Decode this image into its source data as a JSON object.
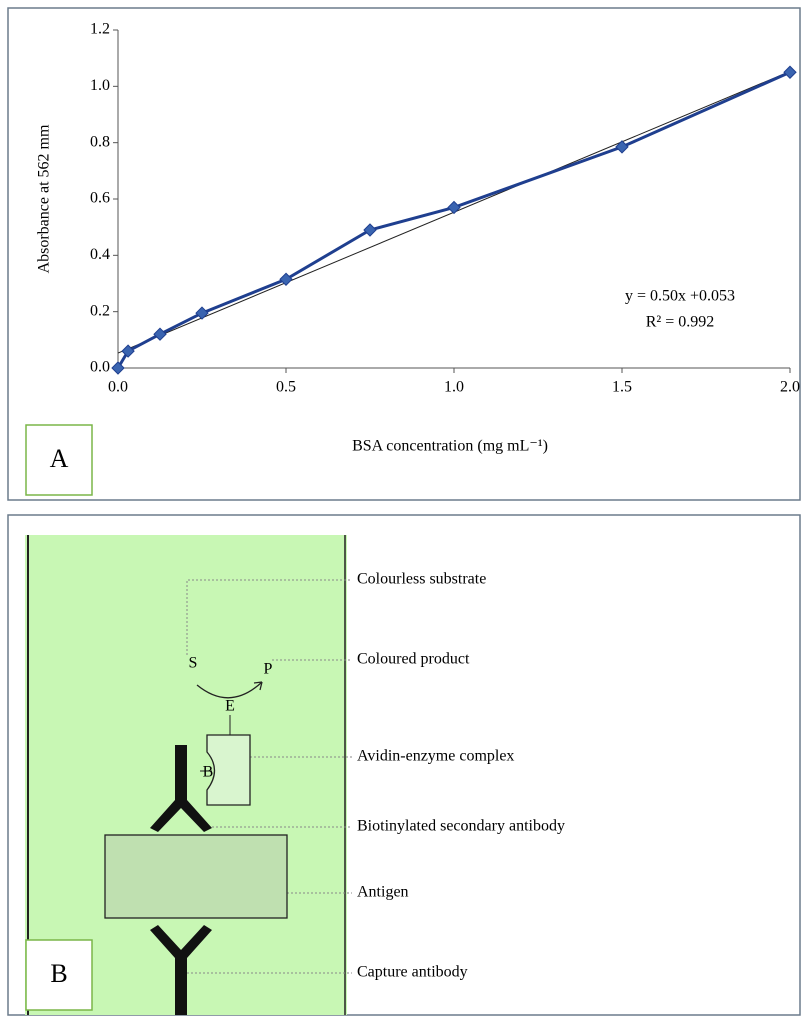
{
  "chart_data": {
    "type": "line",
    "panel_label": "A",
    "xlabel": "BSA concentration (mg mL⁻¹)",
    "ylabel": "Absorbance at 562 mm",
    "annotations": [
      "y = 0.50x +0.053",
      "R² = 0.992"
    ],
    "x": [
      0,
      0.03,
      0.125,
      0.25,
      0.5,
      0.75,
      1.0,
      1.5,
      2.0
    ],
    "series": [
      {
        "color": "#1f3f8f",
        "values": [
          0,
          0.06,
          0.12,
          0.195,
          0.315,
          0.49,
          0.57,
          0.785,
          1.05
        ]
      }
    ],
    "trendline": {
      "slope": 0.5,
      "intercept": 0.053,
      "color": "#222222"
    },
    "xlim": [
      0,
      2.0
    ],
    "ylim": [
      0,
      1.2
    ],
    "xticks": [
      {
        "value": 0,
        "label": "0.0"
      },
      0.5,
      {
        "value": 1,
        "label": "1.0"
      },
      1.5,
      {
        "value": 2,
        "label": "2.0"
      }
    ],
    "yticks": [
      {
        "value": 0,
        "label": "0.0"
      },
      0.2,
      0.4,
      0.6,
      0.8,
      {
        "value": 1,
        "label": "1.0"
      },
      1.2
    ]
  },
  "diagram": {
    "panel_label": "B",
    "letters": {
      "s": "S",
      "p": "P",
      "e": "E",
      "b": "B"
    },
    "labels": [
      "Colourless substrate",
      "Coloured product",
      "Avidin-enzyme complex",
      "Biotinylated secondary antibody",
      "Antigen",
      "Capture antibody"
    ]
  }
}
